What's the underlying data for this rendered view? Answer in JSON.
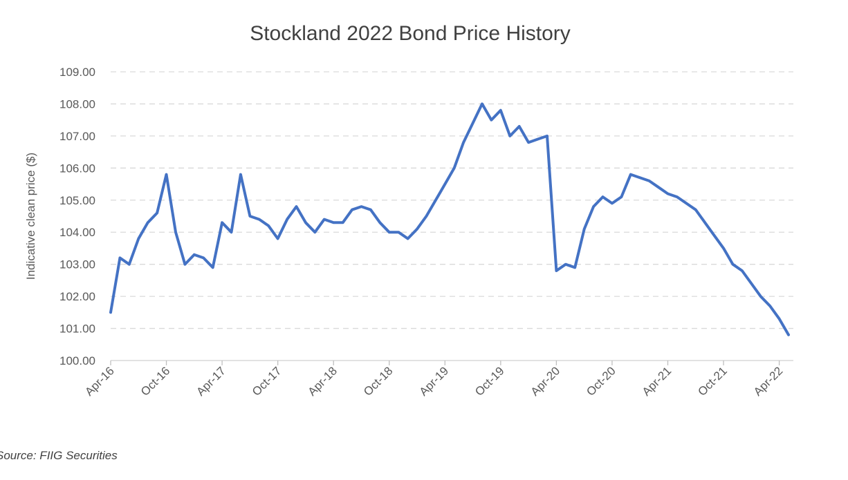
{
  "chart_data": {
    "type": "line",
    "title": "Stockland 2022 Bond Price History",
    "y_label": "Indicative clean price ($)",
    "source": "Source: FIIG Securities",
    "categories": [
      "Apr-16",
      null,
      null,
      null,
      null,
      null,
      "Oct-16",
      null,
      null,
      null,
      null,
      null,
      "Apr-17",
      null,
      null,
      null,
      null,
      null,
      "Oct-17",
      null,
      null,
      null,
      null,
      null,
      "Apr-18",
      null,
      null,
      null,
      null,
      null,
      "Oct-18",
      null,
      null,
      null,
      null,
      null,
      "Apr-19",
      null,
      null,
      null,
      null,
      null,
      "Oct-19",
      null,
      null,
      null,
      null,
      null,
      "Apr-20",
      null,
      null,
      null,
      null,
      null,
      "Oct-20",
      null,
      null,
      null,
      null,
      null,
      "Apr-21",
      null,
      null,
      null,
      null,
      null,
      "Oct-21",
      null,
      null,
      null,
      null,
      null,
      "Apr-22",
      null
    ],
    "series": [
      {
        "name": "Stockland 2022",
        "color": "#4472c4",
        "values": [
          101.5,
          103.2,
          103.0,
          103.8,
          104.3,
          104.6,
          105.8,
          104.0,
          103.0,
          103.3,
          103.2,
          102.9,
          104.3,
          104.0,
          105.8,
          104.5,
          104.4,
          104.2,
          103.8,
          104.4,
          104.8,
          104.3,
          104.0,
          104.4,
          104.3,
          104.3,
          104.7,
          104.8,
          104.7,
          104.3,
          104.0,
          104.0,
          103.8,
          104.1,
          104.5,
          105.0,
          105.5,
          106.0,
          106.8,
          107.4,
          108.0,
          107.5,
          107.8,
          107.0,
          107.3,
          106.8,
          106.9,
          107.0,
          102.8,
          103.0,
          102.9,
          104.1,
          104.8,
          105.1,
          104.9,
          105.1,
          105.8,
          105.7,
          105.6,
          105.4,
          105.2,
          105.1,
          104.9,
          104.7,
          104.3,
          103.9,
          103.5,
          103.0,
          102.8,
          102.4,
          102.0,
          101.7,
          101.3,
          100.8
        ]
      }
    ],
    "ylim": [
      100,
      109
    ],
    "yticks": [
      {
        "value": 100,
        "label": "100.00"
      },
      {
        "value": 101,
        "label": "101.00"
      },
      {
        "value": 102,
        "label": "102.00"
      },
      {
        "value": 103,
        "label": "103.00"
      },
      {
        "value": 104,
        "label": "104.00"
      },
      {
        "value": 105,
        "label": "105.00"
      },
      {
        "value": 106,
        "label": "106.00"
      },
      {
        "value": 107,
        "label": "107.00"
      },
      {
        "value": 108,
        "label": "108.00"
      },
      {
        "value": 109,
        "label": "109.00"
      }
    ],
    "grid": true
  }
}
